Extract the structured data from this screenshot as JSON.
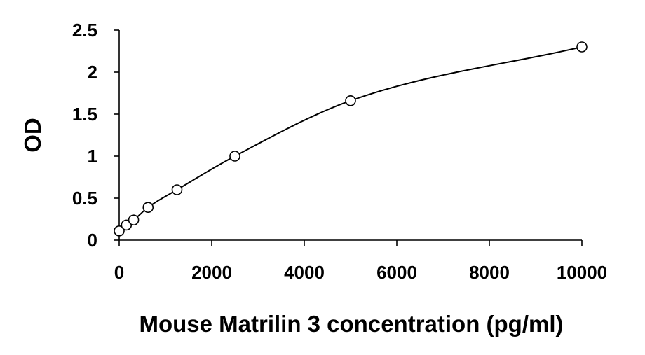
{
  "chart_data": {
    "type": "scatter",
    "title": "",
    "xlabel": "Mouse Matrilin 3 concentration (pg/ml)",
    "ylabel": "OD",
    "xlim": [
      0,
      10000
    ],
    "ylim": [
      0,
      2.5
    ],
    "x_ticks": [
      0,
      2000,
      4000,
      6000,
      8000,
      10000
    ],
    "x_tick_labels": [
      "0",
      "2000",
      "4000",
      "6000",
      "8000",
      "10000"
    ],
    "y_ticks": [
      0,
      0.5,
      1,
      1.5,
      2,
      2.5
    ],
    "y_tick_labels": [
      "0",
      "0.5",
      "1",
      "1.5",
      "2",
      "2.5"
    ],
    "grid": false,
    "legend": "none",
    "marker": "open-circle",
    "trendline": "smooth-fit",
    "series": [
      {
        "x": [
          0,
          156,
          312,
          625,
          1250,
          2500,
          5000,
          10000
        ],
        "y": [
          0.11,
          0.18,
          0.24,
          0.39,
          0.6,
          1.0,
          1.66,
          2.3
        ]
      }
    ]
  }
}
